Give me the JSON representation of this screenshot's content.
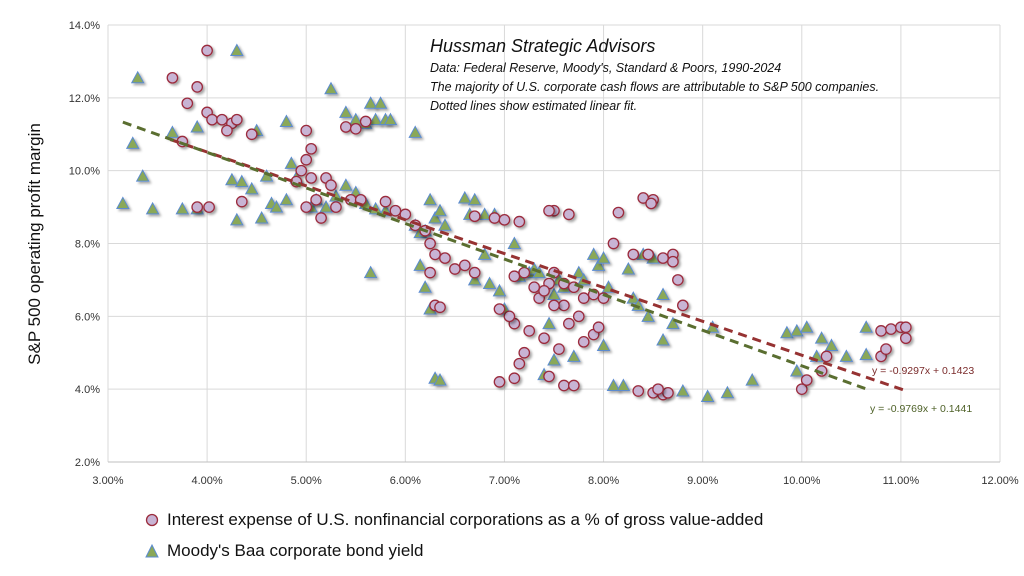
{
  "chart_data": {
    "type": "scatter",
    "ylabel": "S&P 500 operating profit margin",
    "xlim": [
      0.03,
      0.12
    ],
    "ylim": [
      0.02,
      0.14
    ],
    "x_ticks": [
      "3.00%",
      "4.00%",
      "5.00%",
      "6.00%",
      "7.00%",
      "8.00%",
      "9.00%",
      "10.00%",
      "11.00%",
      "12.00%"
    ],
    "y_ticks": [
      "2.0%",
      "4.0%",
      "6.0%",
      "8.0%",
      "10.0%",
      "12.0%",
      "14.0%"
    ],
    "grid": true,
    "legend_position": "bottom",
    "annotations": {
      "title": "Hussman Strategic Advisors",
      "lines": [
        "Data: Federal Reserve, Moody's, Standard & Poors, 1990-2024",
        "The majority of U.S. corporate cash flows are attributable  to S&P 500 companies.",
        "Dotted lines show estimated linear fit."
      ]
    },
    "colors": {
      "interest_fill": "#c8b4d4",
      "interest_stroke": "#9b2c3c",
      "baa_fill": "#8aa858",
      "baa_stroke": "#5b8bd0",
      "fit_interest": "#963232",
      "fit_baa": "#5a6e30"
    },
    "series": [
      {
        "name": "Interest expense of U.S. nonfinancial corporations as a % of gross value-added",
        "marker": "circle",
        "fit": {
          "label": "y = -0.9297x + 0.1423",
          "slope": -0.9297,
          "intercept": 0.1423,
          "x_range": [
            0.0363,
            0.1104
          ]
        },
        "points": [
          [
            4.0,
            13.3
          ],
          [
            3.65,
            12.55
          ],
          [
            3.9,
            12.3
          ],
          [
            3.8,
            11.85
          ],
          [
            4.0,
            11.6
          ],
          [
            4.05,
            11.4
          ],
          [
            4.15,
            11.4
          ],
          [
            4.25,
            11.3
          ],
          [
            4.3,
            11.4
          ],
          [
            4.2,
            11.1
          ],
          [
            4.45,
            11.0
          ],
          [
            3.75,
            10.8
          ],
          [
            3.9,
            9.0
          ],
          [
            4.02,
            9.0
          ],
          [
            4.35,
            9.15
          ],
          [
            5.0,
            11.1
          ],
          [
            5.4,
            11.2
          ],
          [
            5.5,
            11.15
          ],
          [
            5.6,
            11.35
          ],
          [
            5.05,
            10.6
          ],
          [
            5.0,
            10.3
          ],
          [
            4.95,
            10.0
          ],
          [
            4.9,
            9.7
          ],
          [
            5.05,
            9.8
          ],
          [
            5.2,
            9.8
          ],
          [
            5.25,
            9.6
          ],
          [
            5.1,
            9.2
          ],
          [
            5.0,
            9.0
          ],
          [
            5.15,
            8.7
          ],
          [
            5.3,
            9.0
          ],
          [
            5.45,
            9.2
          ],
          [
            5.55,
            9.2
          ],
          [
            5.8,
            9.15
          ],
          [
            5.9,
            8.9
          ],
          [
            6.0,
            8.8
          ],
          [
            6.1,
            8.5
          ],
          [
            6.2,
            8.35
          ],
          [
            6.25,
            8.0
          ],
          [
            6.3,
            7.7
          ],
          [
            6.4,
            7.6
          ],
          [
            6.5,
            7.3
          ],
          [
            6.6,
            7.4
          ],
          [
            6.7,
            7.2
          ],
          [
            6.25,
            7.2
          ],
          [
            6.3,
            6.3
          ],
          [
            6.35,
            6.25
          ],
          [
            6.7,
            8.75
          ],
          [
            6.9,
            8.7
          ],
          [
            7.0,
            8.65
          ],
          [
            7.15,
            8.6
          ],
          [
            7.5,
            8.9
          ],
          [
            7.45,
            8.9
          ],
          [
            7.65,
            8.8
          ],
          [
            8.15,
            8.85
          ],
          [
            8.4,
            9.25
          ],
          [
            8.5,
            9.2
          ],
          [
            8.48,
            9.1
          ],
          [
            8.1,
            8.0
          ],
          [
            8.3,
            7.7
          ],
          [
            8.45,
            7.7
          ],
          [
            8.6,
            7.6
          ],
          [
            8.7,
            7.7
          ],
          [
            8.7,
            7.5
          ],
          [
            8.75,
            7.0
          ],
          [
            8.8,
            6.3
          ],
          [
            7.1,
            7.1
          ],
          [
            7.2,
            7.2
          ],
          [
            7.3,
            6.8
          ],
          [
            7.45,
            6.9
          ],
          [
            7.5,
            7.2
          ],
          [
            7.6,
            6.9
          ],
          [
            7.7,
            6.8
          ],
          [
            7.8,
            6.5
          ],
          [
            7.9,
            6.6
          ],
          [
            7.6,
            6.3
          ],
          [
            7.75,
            6.0
          ],
          [
            7.9,
            5.5
          ],
          [
            8.0,
            6.5
          ],
          [
            7.95,
            5.7
          ],
          [
            7.5,
            6.3
          ],
          [
            7.35,
            6.5
          ],
          [
            7.4,
            6.7
          ],
          [
            7.25,
            5.6
          ],
          [
            7.1,
            5.8
          ],
          [
            7.05,
            6.0
          ],
          [
            6.95,
            6.2
          ],
          [
            7.4,
            5.4
          ],
          [
            7.55,
            5.1
          ],
          [
            7.2,
            5.0
          ],
          [
            7.15,
            4.7
          ],
          [
            7.1,
            4.3
          ],
          [
            6.95,
            4.2
          ],
          [
            7.6,
            4.1
          ],
          [
            7.45,
            4.35
          ],
          [
            7.7,
            4.1
          ],
          [
            7.65,
            5.8
          ],
          [
            7.8,
            5.3
          ],
          [
            8.35,
            3.95
          ],
          [
            8.5,
            3.9
          ],
          [
            8.6,
            3.85
          ],
          [
            8.65,
            3.9
          ],
          [
            8.55,
            4.0
          ],
          [
            10.0,
            4.0
          ],
          [
            10.05,
            4.25
          ],
          [
            10.2,
            4.5
          ],
          [
            10.25,
            4.9
          ],
          [
            10.8,
            4.9
          ],
          [
            10.85,
            5.1
          ],
          [
            10.8,
            5.6
          ],
          [
            10.9,
            5.65
          ],
          [
            11.0,
            5.7
          ],
          [
            11.05,
            5.7
          ],
          [
            11.05,
            5.4
          ]
        ]
      },
      {
        "name": "Moody's Baa corporate bond yield",
        "marker": "triangle",
        "fit": {
          "label": "y = -0.9769x + 0.1441",
          "slope": -0.9769,
          "intercept": 0.1441,
          "x_range": [
            0.0315,
            0.1064
          ]
        },
        "points": [
          [
            3.3,
            12.55
          ],
          [
            3.15,
            9.1
          ],
          [
            3.25,
            10.75
          ],
          [
            3.35,
            9.85
          ],
          [
            3.45,
            8.95
          ],
          [
            3.65,
            11.05
          ],
          [
            3.9,
            11.2
          ],
          [
            3.75,
            8.95
          ],
          [
            3.9,
            8.95
          ],
          [
            4.3,
            13.3
          ],
          [
            4.25,
            9.75
          ],
          [
            4.35,
            9.7
          ],
          [
            4.3,
            8.65
          ],
          [
            4.45,
            9.5
          ],
          [
            4.5,
            11.1
          ],
          [
            4.6,
            9.85
          ],
          [
            4.65,
            9.1
          ],
          [
            4.7,
            9.0
          ],
          [
            4.55,
            8.7
          ],
          [
            4.8,
            9.2
          ],
          [
            4.8,
            11.35
          ],
          [
            4.85,
            10.2
          ],
          [
            4.9,
            9.8
          ],
          [
            5.05,
            9.0
          ],
          [
            5.1,
            9.2
          ],
          [
            5.2,
            9.0
          ],
          [
            5.25,
            12.25
          ],
          [
            5.4,
            11.6
          ],
          [
            5.5,
            11.4
          ],
          [
            5.6,
            11.3
          ],
          [
            5.65,
            11.85
          ],
          [
            5.7,
            11.4
          ],
          [
            5.75,
            11.85
          ],
          [
            5.8,
            11.4
          ],
          [
            5.85,
            11.4
          ],
          [
            5.4,
            9.6
          ],
          [
            5.5,
            9.4
          ],
          [
            5.3,
            9.3
          ],
          [
            5.6,
            9.1
          ],
          [
            5.7,
            8.95
          ],
          [
            5.8,
            8.9
          ],
          [
            5.65,
            7.2
          ],
          [
            6.1,
            11.05
          ],
          [
            6.1,
            8.5
          ],
          [
            6.15,
            8.3
          ],
          [
            6.2,
            8.35
          ],
          [
            6.3,
            8.7
          ],
          [
            6.35,
            8.9
          ],
          [
            6.4,
            8.5
          ],
          [
            6.25,
            9.2
          ],
          [
            6.15,
            7.4
          ],
          [
            6.2,
            6.8
          ],
          [
            6.25,
            6.2
          ],
          [
            6.3,
            4.3
          ],
          [
            6.35,
            4.25
          ],
          [
            6.6,
            9.25
          ],
          [
            6.7,
            9.2
          ],
          [
            6.8,
            8.8
          ],
          [
            6.9,
            8.8
          ],
          [
            6.65,
            8.8
          ],
          [
            6.7,
            7.0
          ],
          [
            6.8,
            7.7
          ],
          [
            6.85,
            6.9
          ],
          [
            6.95,
            6.7
          ],
          [
            7.0,
            6.2
          ],
          [
            7.1,
            8.0
          ],
          [
            7.15,
            7.1
          ],
          [
            7.25,
            7.2
          ],
          [
            7.3,
            7.3
          ],
          [
            7.35,
            7.2
          ],
          [
            7.5,
            6.6
          ],
          [
            7.55,
            7.0
          ],
          [
            7.6,
            6.8
          ],
          [
            7.45,
            5.8
          ],
          [
            7.4,
            4.4
          ],
          [
            7.5,
            4.8
          ],
          [
            7.7,
            4.9
          ],
          [
            7.75,
            7.2
          ],
          [
            7.8,
            7.0
          ],
          [
            7.9,
            7.7
          ],
          [
            7.95,
            7.4
          ],
          [
            8.0,
            7.6
          ],
          [
            8.05,
            6.8
          ],
          [
            8.0,
            5.2
          ],
          [
            8.1,
            4.1
          ],
          [
            8.2,
            4.1
          ],
          [
            8.25,
            7.3
          ],
          [
            8.3,
            6.5
          ],
          [
            8.35,
            6.3
          ],
          [
            8.4,
            7.7
          ],
          [
            8.45,
            6.0
          ],
          [
            8.5,
            7.6
          ],
          [
            8.6,
            6.6
          ],
          [
            8.6,
            5.35
          ],
          [
            8.7,
            5.8
          ],
          [
            8.8,
            3.95
          ],
          [
            9.05,
            3.8
          ],
          [
            9.25,
            3.9
          ],
          [
            9.1,
            5.7
          ],
          [
            9.5,
            4.25
          ],
          [
            9.95,
            4.5
          ],
          [
            9.85,
            5.55
          ],
          [
            9.95,
            5.6
          ],
          [
            10.05,
            5.7
          ],
          [
            10.15,
            4.9
          ],
          [
            10.2,
            5.4
          ],
          [
            10.3,
            5.2
          ],
          [
            10.45,
            4.9
          ],
          [
            10.65,
            4.95
          ],
          [
            10.65,
            5.7
          ]
        ]
      }
    ]
  }
}
